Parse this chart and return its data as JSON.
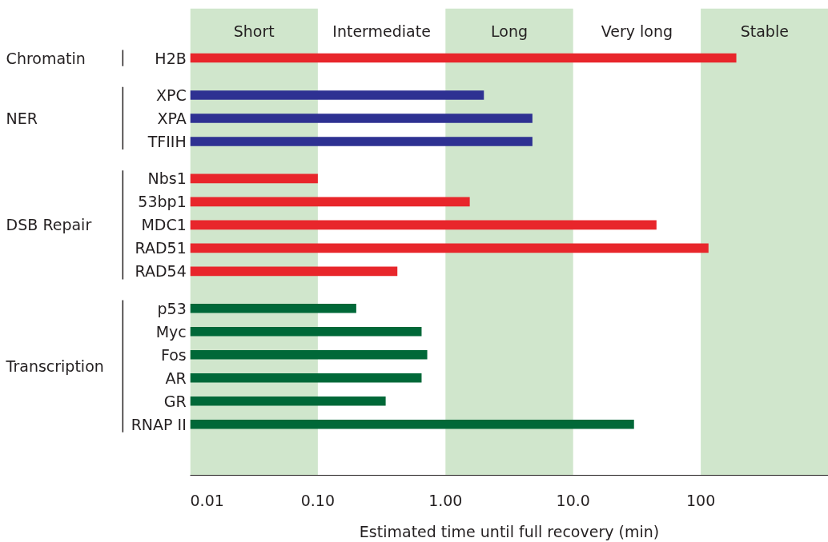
{
  "chart_data": {
    "type": "bar",
    "orientation": "horizontal",
    "log": "x",
    "xlabel": "Estimated time until full recovery (min)",
    "categories": [
      "H2B",
      "XPC",
      "XPA",
      "TFIIH",
      "Nbs1",
      "53bp1",
      "MDC1",
      "RAD51",
      "RAD54",
      "p53",
      "Myc",
      "Fos",
      "AR",
      "GR",
      "RNAP II"
    ],
    "series": [
      {
        "color": "#e8262b",
        "values": [
          190,
          null,
          null,
          null,
          null,
          null,
          null,
          null,
          null,
          null,
          null,
          null,
          null,
          null,
          null
        ]
      },
      {
        "color": "#2e3192",
        "values": [
          null,
          2.0,
          4.8,
          4.8,
          null,
          null,
          null,
          null,
          null,
          null,
          null,
          null,
          null,
          null,
          null
        ]
      },
      {
        "color": "#e8262b",
        "values": [
          null,
          null,
          null,
          null,
          0.1,
          1.55,
          45,
          115,
          0.42,
          null,
          null,
          null,
          null,
          null,
          null
        ]
      },
      {
        "color": "#006838",
        "values": [
          null,
          null,
          null,
          null,
          null,
          null,
          null,
          null,
          null,
          0.2,
          0.65,
          0.72,
          0.65,
          0.34,
          30
        ]
      }
    ],
    "xlim": [
      0.01,
      1000
    ],
    "xticks": [
      0.01,
      {
        "value": 0.1,
        "label": "0.10"
      },
      {
        "value": 1,
        "label": "1.00"
      },
      {
        "value": 10,
        "label": "10.0"
      },
      100
    ],
    "bands": [
      {
        "axis": "x",
        "from": 0.01,
        "to": 0.1,
        "label": "Short",
        "color": "#d0e6cc"
      },
      {
        "axis": "x",
        "from": 1,
        "to": 10,
        "label": "Long",
        "color": "#d0e6cc"
      },
      {
        "axis": "x",
        "from": 100,
        "to": 1000,
        "label": "Stable",
        "color": "#d0e6cc"
      }
    ],
    "annotations": [
      "Chromatin",
      "NER",
      "DSB Repair",
      "Transcription",
      "Intermediate",
      "Very long"
    ]
  }
}
